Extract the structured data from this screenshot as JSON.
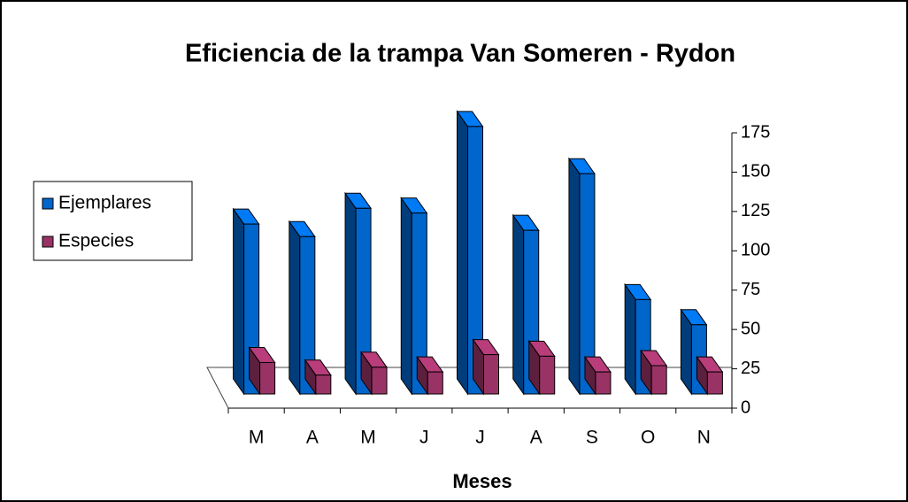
{
  "chart_data": {
    "type": "bar3d",
    "title": "Eficiencia de la trampa Van Someren - Rydon",
    "x_label": "Meses",
    "categories": [
      "M",
      "A",
      "M",
      "J",
      "J",
      "A",
      "S",
      "O",
      "N"
    ],
    "series": [
      {
        "name": "Ejemplares",
        "color": "#0066cc",
        "values": [
          108,
          100,
          118,
          115,
          170,
          104,
          140,
          60,
          44
        ]
      },
      {
        "name": "Especies",
        "color": "#993366",
        "values": [
          20,
          12,
          17,
          14,
          25,
          24,
          14,
          18,
          14
        ]
      }
    ],
    "ylim": [
      0,
      175
    ],
    "yticks": [
      0,
      25,
      50,
      75,
      100,
      125,
      150,
      175
    ],
    "legend": "left"
  }
}
